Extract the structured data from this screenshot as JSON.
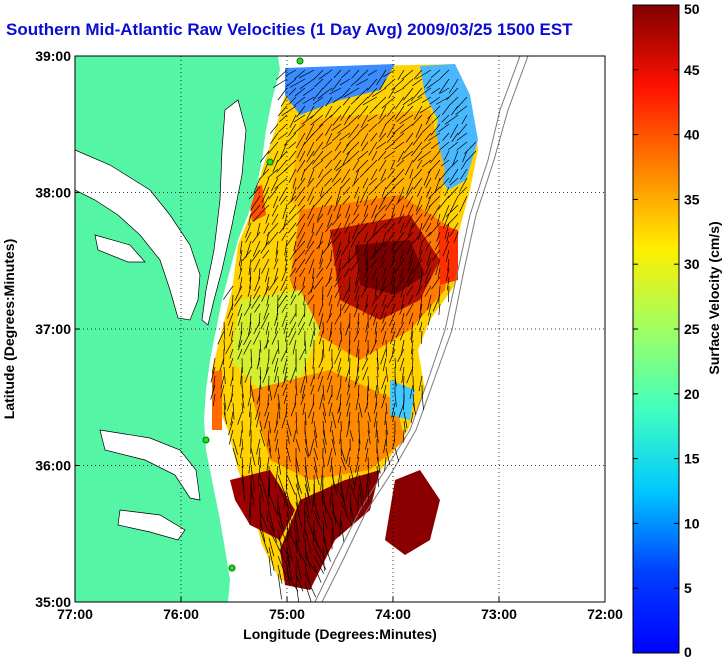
{
  "chart_data": {
    "type": "heatmap",
    "title": "Southern Mid-Atlantic Raw Velocities (1 Day Avg) 2009/03/25 1500 EST",
    "xlabel": "Longitude (Degrees:Minutes)",
    "ylabel": "Latitude (Degrees:Minutes)",
    "colorbar_label": "Surface Velocity (cm/s)",
    "x_ticks": [
      "77:00",
      "76:00",
      "75:00",
      "74:00",
      "73:00",
      "72:00"
    ],
    "y_ticks": [
      "39:00",
      "38:00",
      "37:00",
      "36:00",
      "35:00"
    ],
    "colorbar_ticks": [
      "0",
      "5",
      "10",
      "15",
      "20",
      "25",
      "30",
      "35",
      "40",
      "45",
      "50"
    ],
    "xlim": [
      -77,
      -72
    ],
    "ylim": [
      35,
      39
    ],
    "clim": [
      0,
      50
    ],
    "grid": true,
    "colormap": "jet",
    "land_color": "#55f5a6",
    "colorbar_location": "right"
  }
}
